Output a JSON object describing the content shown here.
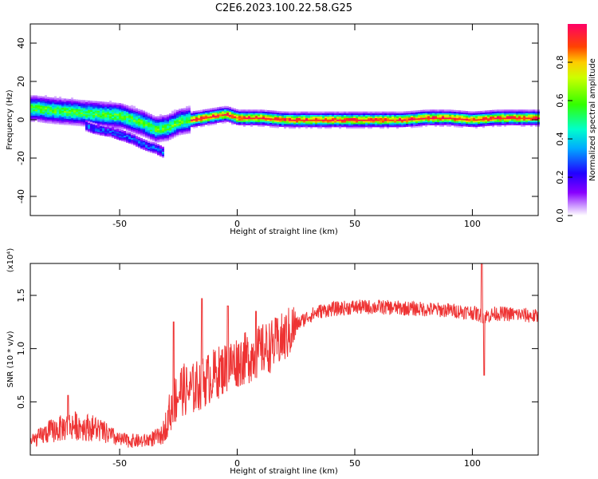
{
  "title": "C2E6.2023.100.22.58.G25",
  "chart_data": [
    {
      "type": "heatmap",
      "xlabel": "Height of straight line (km)",
      "ylabel": "Frequency (Hz)",
      "xlim": [
        -88,
        128
      ],
      "ylim": [
        -50,
        50
      ],
      "xticks": [
        -50,
        0,
        50,
        100
      ],
      "yticks": [
        -40,
        -20,
        0,
        20,
        40
      ],
      "colorbar": {
        "label": "Normalized spectral amplitude",
        "range": [
          0.0,
          1.0
        ],
        "ticks": [
          0.0,
          0.2,
          0.4,
          0.6,
          0.8
        ]
      },
      "ridge": {
        "x": [
          -86,
          -80,
          -70,
          -60,
          -50,
          -40,
          -35,
          -30,
          -25,
          -20,
          -15,
          -10,
          -5,
          0,
          10,
          20,
          30,
          40,
          50,
          60,
          70,
          80,
          90,
          100,
          110,
          120,
          128
        ],
        "y": [
          6,
          5,
          4,
          3,
          2,
          -2,
          -5,
          -4,
          -1,
          0,
          1,
          2,
          3,
          1,
          1,
          0,
          0,
          0,
          0,
          0,
          0,
          1,
          1,
          0,
          1,
          1,
          1
        ]
      },
      "secondary_branch": {
        "x": [
          -65,
          -60,
          -55,
          -50,
          -45,
          -42,
          -38,
          -35,
          -32
        ],
        "y": [
          -3,
          -5,
          -6,
          -8,
          -10,
          -12,
          -14,
          -15,
          -17
        ]
      }
    },
    {
      "type": "line",
      "xlabel": "Height of straight line (km)",
      "ylabel": "SNR (10 * v/v)",
      "yscale_label": "(x10⁴)",
      "xlim": [
        -88,
        128
      ],
      "ylim": [
        0,
        1.8
      ],
      "xticks": [
        -50,
        0,
        50,
        100
      ],
      "yticks": [
        0.5,
        1.0,
        1.5
      ],
      "ytick_labels": [
        "0.5",
        "1.0",
        "1.5"
      ],
      "color": "#ee3333",
      "envelope": {
        "x": [
          -88,
          -80,
          -70,
          -60,
          -50,
          -40,
          -32,
          -28,
          -24,
          -20,
          -15,
          -10,
          -5,
          0,
          5,
          10,
          15,
          20,
          25,
          30,
          35,
          40,
          50,
          60,
          70,
          80,
          90,
          100,
          105,
          110,
          120,
          128
        ],
        "y": [
          0.12,
          0.22,
          0.28,
          0.25,
          0.14,
          0.13,
          0.18,
          0.45,
          0.62,
          0.6,
          0.68,
          0.75,
          0.82,
          0.88,
          0.92,
          0.98,
          1.03,
          1.1,
          1.22,
          1.3,
          1.35,
          1.37,
          1.39,
          1.39,
          1.38,
          1.37,
          1.36,
          1.34,
          1.3,
          1.33,
          1.32,
          1.3
        ]
      },
      "peaks": [
        {
          "x": -72,
          "y": 0.56
        },
        {
          "x": -27,
          "y": 1.25
        },
        {
          "x": -15,
          "y": 1.47
        },
        {
          "x": -4,
          "y": 1.4
        },
        {
          "x": 8,
          "y": 1.35
        },
        {
          "x": 104,
          "y": 1.82
        },
        {
          "x": 105,
          "y": 0.75
        }
      ]
    }
  ]
}
